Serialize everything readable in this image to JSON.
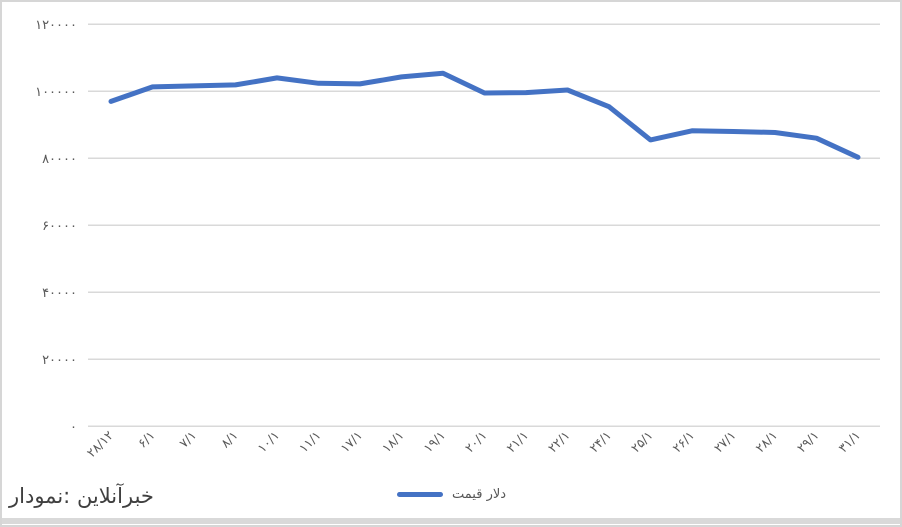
{
  "chart_data": {
    "type": "line",
    "title": "",
    "xlabel": "",
    "ylabel": "",
    "categories": [
      "۲۸/۱۲",
      "۶/۱",
      "۷/۱",
      "۸/۱",
      "۱۰/۱",
      "۱۱/۱",
      "۱۷/۱",
      "۱۸/۱",
      "۱۹/۱",
      "۲۰/۱",
      "۲۱/۱",
      "۲۲/۱",
      "۲۴/۱",
      "۲۵/۱",
      "۲۶/۱",
      "۲۷/۱",
      "۲۸/۱",
      "۲۹/۱",
      "۳۱/۱"
    ],
    "categories_translit": [
      "28/12",
      "6/1",
      "7/1",
      "8/1",
      "10/1",
      "11/1",
      "17/1",
      "18/1",
      "19/1",
      "20/1",
      "21/1",
      "22/1",
      "24/1",
      "25/1",
      "26/1",
      "27/1",
      "28/1",
      "29/1",
      "31/1"
    ],
    "series": [
      {
        "name": "قیمت دلار",
        "values": [
          97000,
          101300,
          101600,
          101900,
          104000,
          102400,
          102200,
          104300,
          105400,
          99500,
          99600,
          100400,
          95400,
          85500,
          88200,
          88000,
          87700,
          86000,
          80300
        ]
      }
    ],
    "ylim": [
      0,
      120000
    ],
    "y_tick_step": 20000,
    "y_tick_labels_bottom_to_top": [
      "۰",
      "۲۰۰۰۰",
      "۴۰۰۰۰",
      "۶۰۰۰۰",
      "۸۰۰۰۰",
      "۱۰۰۰۰۰",
      "۱۲۰۰۰۰"
    ],
    "grid": "horizontal",
    "x_label_rotation_deg": -45,
    "legend_position": "bottom-center"
  },
  "legend": {
    "series_label": "قیمت دلار"
  },
  "source": {
    "text": "نمودار: خبرآنلاین"
  },
  "colors": {
    "series_line": "#4472c4",
    "gridline": "#d9d9d9",
    "tick_label": "#595959",
    "legend_text": "#555555",
    "source_text": "#3f3f3f",
    "bottom_bar": "#d9d9d9",
    "border": "#d6d6d6",
    "background": "#ffffff"
  }
}
